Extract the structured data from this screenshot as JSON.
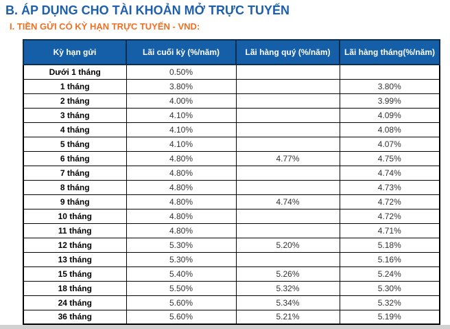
{
  "page": {
    "title": "B. ÁP DỤNG CHO TÀI KHOẢN MỞ TRỰC TUYẾN",
    "subtitle": "I. TIỀN GỬI CÓ KỲ HẠN TRỰC TUYẾN - VND:"
  },
  "colors": {
    "title_blue": "#1e5faa",
    "subtitle_orange": "#ef7022",
    "header_bg": "#155fa9",
    "header_border": "#0e2c4e",
    "header_text": "#ffffff",
    "row_border": "#000000",
    "bottom_strip": "#d1d1d1"
  },
  "table": {
    "columns": [
      "Kỳ hạn gửi",
      "Lãi cuối kỳ (%/năm)",
      "Lãi hàng quý (%/năm)",
      "Lãi hàng tháng(%/năm)"
    ],
    "rows": [
      {
        "term": "Dưới 1 tháng",
        "end_of_term": "0.50%",
        "quarterly": "",
        "monthly": ""
      },
      {
        "term": "1 tháng",
        "end_of_term": "3.80%",
        "quarterly": "",
        "monthly": "3.80%"
      },
      {
        "term": "2 tháng",
        "end_of_term": "4.00%",
        "quarterly": "",
        "monthly": "3.99%"
      },
      {
        "term": "3 tháng",
        "end_of_term": "4.10%",
        "quarterly": "",
        "monthly": "4.09%"
      },
      {
        "term": "4 tháng",
        "end_of_term": "4.10%",
        "quarterly": "",
        "monthly": "4.08%"
      },
      {
        "term": "5 tháng",
        "end_of_term": "4.10%",
        "quarterly": "",
        "monthly": "4.07%"
      },
      {
        "term": "6 tháng",
        "end_of_term": "4.80%",
        "quarterly": "4.77%",
        "monthly": "4.75%"
      },
      {
        "term": "7 tháng",
        "end_of_term": "4.80%",
        "quarterly": "",
        "monthly": "4.74%"
      },
      {
        "term": "8 tháng",
        "end_of_term": "4.80%",
        "quarterly": "",
        "monthly": "4.73%"
      },
      {
        "term": "9 tháng",
        "end_of_term": "4.80%",
        "quarterly": "4.74%",
        "monthly": "4.72%"
      },
      {
        "term": "10 tháng",
        "end_of_term": "4.80%",
        "quarterly": "",
        "monthly": "4.72%"
      },
      {
        "term": "11 tháng",
        "end_of_term": "4.80%",
        "quarterly": "",
        "monthly": "4.71%"
      },
      {
        "term": "12 tháng",
        "end_of_term": "5.30%",
        "quarterly": "5.20%",
        "monthly": "5.18%"
      },
      {
        "term": "13 tháng",
        "end_of_term": "5.30%",
        "quarterly": "",
        "monthly": "5.16%"
      },
      {
        "term": "15 tháng",
        "end_of_term": "5.40%",
        "quarterly": "5.26%",
        "monthly": "5.24%"
      },
      {
        "term": "18 tháng",
        "end_of_term": "5.50%",
        "quarterly": "5.32%",
        "monthly": "5.30%"
      },
      {
        "term": "24 tháng",
        "end_of_term": "5.60%",
        "quarterly": "5.34%",
        "monthly": "5.32%"
      },
      {
        "term": "36 tháng",
        "end_of_term": "5.60%",
        "quarterly": "5.21%",
        "monthly": "5.19%"
      }
    ]
  }
}
